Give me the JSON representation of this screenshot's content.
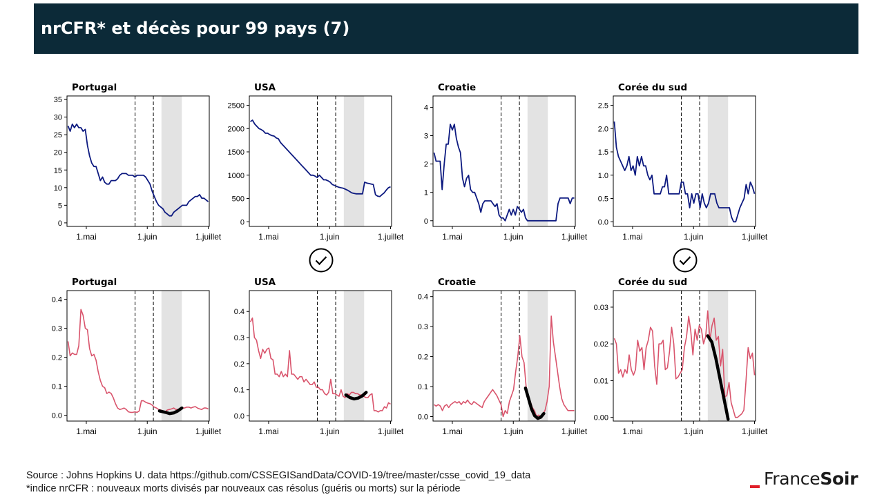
{
  "header": {
    "title": "nrCFR* et décès pour 99 pays (7)"
  },
  "footer": {
    "source": "Source : Johns Hopkins U. data https://github.com/CSSEGISandData/COVID-19/tree/master/csse_covid_19_data",
    "note": "*indice nrCFR : nouveaux morts divisés par nouveaux cas résolus (guéris ou morts) sur la période"
  },
  "brand": {
    "part1": "France",
    "part2": "Soir",
    "accent_color": "#e0202a"
  },
  "icons": [
    "check-circle-icon",
    "check-circle-icon"
  ],
  "colors": {
    "deaths_line": "#0d1a80",
    "nrcfr_line": "#d9546c",
    "fit_curve": "#000000",
    "shaded_period": "#e3e3e3"
  },
  "chart_data": [
    {
      "type": "line",
      "title": "Portugal",
      "metric": "deaths",
      "xticks": [
        "1.mai",
        "1.juin",
        "1.juillet"
      ],
      "ylim": [
        -1,
        36
      ],
      "yticks": [
        0,
        5,
        10,
        15,
        20,
        25,
        30,
        35
      ],
      "series": [
        {
          "values": [
            27.5,
            26,
            28,
            27,
            28,
            27,
            27,
            26,
            26.5,
            22,
            19,
            17,
            16,
            16,
            14,
            12,
            13,
            11.5,
            11,
            11,
            12,
            12,
            12,
            12.5,
            13.5,
            14,
            14,
            14,
            13.5,
            13.5,
            13.5,
            13,
            13.5,
            13.5,
            13.5,
            13.5,
            13,
            12,
            11,
            9,
            7.5,
            6,
            5,
            4.5,
            4,
            3,
            2.5,
            2,
            2,
            3,
            3.5,
            4,
            4.5,
            5,
            5,
            5,
            6,
            6.5,
            7,
            7.5,
            7.5,
            8,
            7,
            7,
            6.5,
            6
          ]
        }
      ],
      "guides": [
        33,
        42
      ],
      "shade": [
        46,
        56
      ]
    },
    {
      "type": "line",
      "title": "USA",
      "metric": "deaths",
      "xticks": [
        "1.mai",
        "1.juin",
        "1.juillet"
      ],
      "ylim": [
        -100,
        2700
      ],
      "yticks": [
        0,
        500,
        1000,
        1500,
        2000,
        2500
      ],
      "series": [
        {
          "values": [
            2150,
            2180,
            2100,
            2050,
            2000,
            1980,
            1950,
            1900,
            1900,
            1870,
            1850,
            1840,
            1800,
            1780,
            1700,
            1650,
            1600,
            1550,
            1500,
            1450,
            1400,
            1350,
            1300,
            1250,
            1200,
            1150,
            1100,
            1050,
            1000,
            1000,
            980,
            950,
            1000,
            950,
            900,
            900,
            880,
            850,
            800,
            780,
            760,
            740,
            730,
            720,
            700,
            680,
            650,
            620,
            610,
            600,
            600,
            600,
            600,
            850,
            830,
            820,
            810,
            800,
            580,
            550,
            540,
            580,
            620,
            680,
            730,
            750
          ]
        }
      ],
      "guides": [
        33,
        42
      ],
      "shade": [
        46,
        56
      ]
    },
    {
      "type": "line",
      "title": "Croatie",
      "metric": "deaths",
      "xticks": [
        "1.mai",
        "1.juin",
        "1.juillet"
      ],
      "ylim": [
        -0.2,
        4.4
      ],
      "yticks": [
        0,
        1,
        2,
        3,
        4
      ],
      "series": [
        {
          "values": [
            2.4,
            2.1,
            2.1,
            2.1,
            1.1,
            2,
            2.7,
            2.7,
            3.4,
            3.2,
            3.4,
            2.9,
            2.6,
            2.4,
            1.5,
            1.2,
            1.5,
            1.6,
            1.1,
            1,
            1,
            0.8,
            0.6,
            0.3,
            0.6,
            0.7,
            0.7,
            0.7,
            0.7,
            0.6,
            0.5,
            0.6,
            0.2,
            0.1,
            0.1,
            0,
            0.2,
            0.4,
            0.2,
            0.4,
            0.2,
            0.5,
            0.4,
            0.3,
            0.4,
            0.1,
            0,
            0,
            0,
            0,
            0,
            0,
            0,
            0,
            0,
            0,
            0,
            0,
            0,
            0,
            0,
            0.6,
            0.8,
            0.8,
            0.8,
            0.8,
            0.8,
            0.6,
            0.8,
            0.8
          ]
        }
      ],
      "guides": [
        33,
        42
      ],
      "shade": [
        46,
        56
      ]
    },
    {
      "type": "line",
      "title": "Corée du sud",
      "metric": "deaths",
      "xticks": [
        "1.mai",
        "1.juin",
        "1.juillet"
      ],
      "ylim": [
        -0.1,
        2.7
      ],
      "yticks": [
        0.0,
        0.5,
        1.0,
        1.5,
        2.0,
        2.5
      ],
      "series": [
        {
          "values": [
            2.15,
            1.6,
            1.4,
            1.3,
            1.2,
            1.1,
            1.2,
            1.4,
            1.1,
            1.2,
            1,
            1.4,
            1.2,
            1.4,
            1.2,
            1.2,
            1,
            0.9,
            1,
            0.6,
            0.6,
            0.6,
            0.6,
            0.75,
            0.75,
            1,
            0.6,
            0.6,
            0.6,
            0.6,
            0.6,
            0.6,
            0.85,
            0.85,
            0.6,
            0.6,
            0.3,
            0.6,
            0.4,
            0.6,
            0.6,
            0.3,
            0.6,
            0.4,
            0.3,
            0.4,
            0.6,
            0.6,
            0.6,
            0.4,
            0.3,
            0.3,
            0.3,
            0.3,
            0.3,
            0.3,
            0.1,
            0.0,
            0.0,
            0.15,
            0.3,
            0.4,
            0.5,
            0.8,
            0.6,
            0.85,
            0.75,
            0.6
          ]
        }
      ],
      "guides": [
        33,
        42
      ],
      "shade": [
        46,
        56
      ]
    },
    {
      "type": "line",
      "title": "Portugal",
      "metric": "nrCFR",
      "xticks": [
        "1.mai",
        "1.juin",
        "1.juillet"
      ],
      "ylim": [
        -0.02,
        0.43
      ],
      "yticks": [
        0.0,
        0.1,
        0.2,
        0.3,
        0.4
      ],
      "series": [
        {
          "values": [
            0.255,
            0.205,
            0.215,
            0.21,
            0.21,
            0.24,
            0.365,
            0.345,
            0.3,
            0.295,
            0.23,
            0.205,
            0.21,
            0.19,
            0.15,
            0.12,
            0.1,
            0.095,
            0.075,
            0.08,
            0.075,
            0.06,
            0.04,
            0.025,
            0.02,
            0.022,
            0.025,
            0.02,
            0.012,
            0.01,
            0.01,
            0.012,
            0.01,
            0.015,
            0.05,
            0.05,
            0.045,
            0.042,
            0.04,
            0.035,
            0.028,
            0.025,
            0.02,
            0.018,
            0.015,
            0.012,
            0.018,
            0.02,
            0.022,
            0.025,
            0.02,
            0.02,
            0.022,
            0.025,
            0.025,
            0.028,
            0.028,
            0.025,
            0.028,
            0.03,
            0.025,
            0.022,
            0.02,
            0.025,
            0.025,
            0.022
          ]
        }
      ],
      "guides": [
        33,
        42
      ],
      "shade": [
        46,
        56
      ],
      "fit": {
        "points": [
          [
            45,
            0.015
          ],
          [
            48,
            0.01
          ],
          [
            50,
            0.006
          ],
          [
            52,
            0.008
          ],
          [
            54,
            0.015
          ],
          [
            56,
            0.025
          ]
        ]
      }
    },
    {
      "type": "line",
      "title": "USA",
      "metric": "nrCFR",
      "xticks": [
        "1.mai",
        "1.juin",
        "1.juillet"
      ],
      "ylim": [
        -0.02,
        0.48
      ],
      "yticks": [
        0.0,
        0.1,
        0.2,
        0.3,
        0.4
      ],
      "series": [
        {
          "values": [
            0.36,
            0.375,
            0.3,
            0.29,
            0.25,
            0.22,
            0.255,
            0.24,
            0.255,
            0.26,
            0.22,
            0.215,
            0.16,
            0.16,
            0.15,
            0.17,
            0.15,
            0.16,
            0.15,
            0.25,
            0.16,
            0.16,
            0.15,
            0.14,
            0.15,
            0.15,
            0.13,
            0.14,
            0.13,
            0.12,
            0.12,
            0.13,
            0.11,
            0.11,
            0.1,
            0.1,
            0.085,
            0.08,
            0.09,
            0.14,
            0.085,
            0.085,
            0.08,
            0.075,
            0.1,
            0.075,
            0.07,
            0.085,
            0.08,
            0.09,
            0.09,
            0.085,
            0.085,
            0.08,
            0.08,
            0.075,
            0.07,
            0.07,
            0.08,
            0.085,
            0.02,
            0.02,
            0.015,
            0.02,
            0.02,
            0.035,
            0.03,
            0.05,
            0.045
          ]
        }
      ],
      "guides": [
        33,
        42
      ],
      "shade": [
        46,
        56
      ],
      "fit": {
        "points": [
          [
            47,
            0.08
          ],
          [
            49,
            0.07
          ],
          [
            51,
            0.065
          ],
          [
            53,
            0.068
          ],
          [
            55,
            0.076
          ],
          [
            57,
            0.09
          ]
        ]
      }
    },
    {
      "type": "line",
      "title": "Croatie",
      "metric": "nrCFR",
      "xticks": [
        "1.mai",
        "1.juin",
        "1.juillet"
      ],
      "ylim": [
        -0.015,
        0.42
      ],
      "yticks": [
        0.0,
        0.1,
        0.2,
        0.3,
        0.4
      ],
      "series": [
        {
          "values": [
            0.04,
            0.035,
            0.04,
            0.035,
            0.02,
            0.035,
            0.04,
            0.03,
            0.04,
            0.045,
            0.05,
            0.045,
            0.05,
            0.04,
            0.05,
            0.045,
            0.055,
            0.045,
            0.04,
            0.05,
            0.045,
            0.04,
            0.035,
            0.03,
            0.05,
            0.06,
            0.07,
            0.08,
            0.09,
            0.08,
            0.07,
            0.055,
            0.04,
            0.0,
            0.02,
            0.01,
            0.05,
            0.07,
            0.09,
            0.15,
            0.2,
            0.27,
            0.2,
            0.18,
            0.1,
            0.07,
            0.05,
            0.03,
            0.02,
            0.0,
            0.005,
            0.0,
            0.01,
            0.02,
            0.05,
            0.1,
            0.335,
            0.25,
            0.2,
            0.15,
            0.1,
            0.06,
            0.04,
            0.03,
            0.02,
            0.02,
            0.02,
            0.02
          ]
        }
      ],
      "guides": [
        33,
        42
      ],
      "shade": [
        46,
        56
      ],
      "fit": {
        "points": [
          [
            45,
            0.095
          ],
          [
            46.5,
            0.06
          ],
          [
            48,
            0.025
          ],
          [
            49.5,
            0.003
          ],
          [
            51,
            -0.006
          ],
          [
            52.5,
            -0.002
          ],
          [
            54,
            0.01
          ]
        ]
      }
    },
    {
      "type": "line",
      "title": "Corée du sud",
      "metric": "nrCFR",
      "xticks": [
        "1.mai",
        "1.juin",
        "1.juillet"
      ],
      "ylim": [
        -0.001,
        0.0345
      ],
      "yticks": [
        0.0,
        0.01,
        0.02,
        0.03
      ],
      "series": [
        {
          "values": [
            0.0215,
            0.02,
            0.012,
            0.013,
            0.011,
            0.013,
            0.012,
            0.017,
            0.013,
            0.0115,
            0.013,
            0.021,
            0.018,
            0.019,
            0.013,
            0.019,
            0.021,
            0.0245,
            0.0235,
            0.014,
            0.009,
            0.02,
            0.02,
            0.021,
            0.013,
            0.0135,
            0.018,
            0.0245,
            0.02,
            0.0105,
            0.011,
            0.012,
            0.013,
            0.019,
            0.022,
            0.0275,
            0.0235,
            0.017,
            0.024,
            0.021,
            0.025,
            0.024,
            0.02,
            0.022,
            0.029,
            0.021,
            0.025,
            0.027,
            0.021,
            0.022,
            0.014,
            0.0185,
            0.0055,
            0.006,
            0.0095,
            0.004,
            0.002,
            0.0,
            0.0,
            0.0005,
            0.001,
            0.002,
            0.01,
            0.019,
            0.016,
            0.0175,
            0.0115
          ]
        }
      ],
      "guides": [
        33,
        42
      ],
      "shade": [
        46,
        56
      ],
      "fit": {
        "points": [
          [
            46,
            0.0222
          ],
          [
            48,
            0.0205
          ],
          [
            50,
            0.016
          ],
          [
            52,
            0.0105
          ],
          [
            54,
            0.005
          ],
          [
            56,
            -0.0005
          ]
        ]
      }
    }
  ]
}
